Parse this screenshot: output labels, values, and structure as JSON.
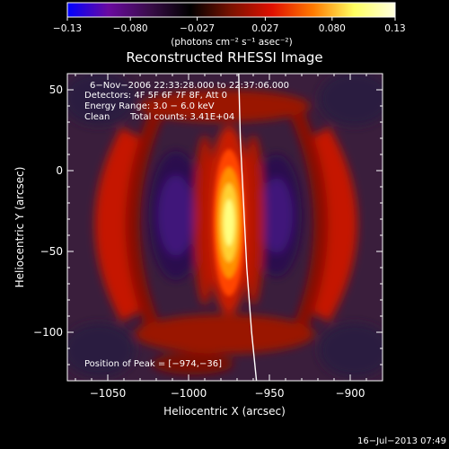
{
  "chart_data": {
    "type": "heatmap",
    "title": "Reconstructed RHESSI Image",
    "xlabel": "Heliocentric X (arcsec)",
    "ylabel": "Heliocentric Y (arcsec)",
    "xlim": [
      -1075,
      -880
    ],
    "ylim": [
      -130,
      60
    ],
    "xticks": [
      -1050,
      -1000,
      -950,
      -900
    ],
    "yticks": [
      50,
      0,
      -50,
      -100
    ],
    "xtick_labels": [
      "−1050",
      "−1000",
      "−950",
      "−900"
    ],
    "ytick_labels": [
      "50",
      "0",
      "−50",
      "−100"
    ],
    "colorbar": {
      "min": -0.13,
      "max": 0.13,
      "ticks": [
        -0.13,
        -0.08,
        -0.027,
        0.027,
        0.08,
        0.13
      ],
      "tick_labels": [
        "−0.13",
        "−0.080",
        "−0.027",
        "0.027",
        "0.080",
        "0.13"
      ],
      "unit_label": "(photons cm⁻² s⁻¹ asec⁻²)",
      "colormap": [
        "#0000ff",
        "#6a0aa0",
        "#3a0d4a",
        "#000000",
        "#7a1200",
        "#e01000",
        "#ff7a00",
        "#ffff60",
        "#ffffe0"
      ]
    },
    "annotations": {
      "time_range": "6−Nov−2006 22:33:28.000 to 22:37:06.000",
      "detectors": "Detectors: 4F 5F 6F 7F 8F, Att 0",
      "energy_range": "Energy Range: 3.0 − 6.0 keV",
      "method": "Clean",
      "total_counts": "Total counts: 3.41E+04",
      "peak": "Position of Peak = [−974,−36]"
    },
    "peak_position": [
      -974,
      -36
    ],
    "limb_points": [
      [
        -969,
        60
      ],
      [
        -968,
        20
      ],
      [
        -966,
        -20
      ],
      [
        -964,
        -60
      ],
      [
        -961,
        -100
      ],
      [
        -958,
        -130
      ]
    ],
    "features": [
      {
        "kind": "hot-core",
        "x": -974,
        "y": -36,
        "value": 0.13
      },
      {
        "kind": "negative-lobe",
        "x": -1005,
        "y": -40,
        "value": -0.07
      },
      {
        "kind": "negative-lobe",
        "x": -942,
        "y": -40,
        "value": -0.06
      },
      {
        "kind": "positive-ring-left",
        "x": -1045,
        "y": -35,
        "value": 0.05
      },
      {
        "kind": "positive-ring-right",
        "x": -905,
        "y": -35,
        "value": 0.05
      }
    ]
  },
  "footer": {
    "timestamp": "16−Jul−2013 07:49"
  },
  "colors": {
    "background": "#000000",
    "axes": "#ffffff",
    "limb": "#ffffff"
  }
}
